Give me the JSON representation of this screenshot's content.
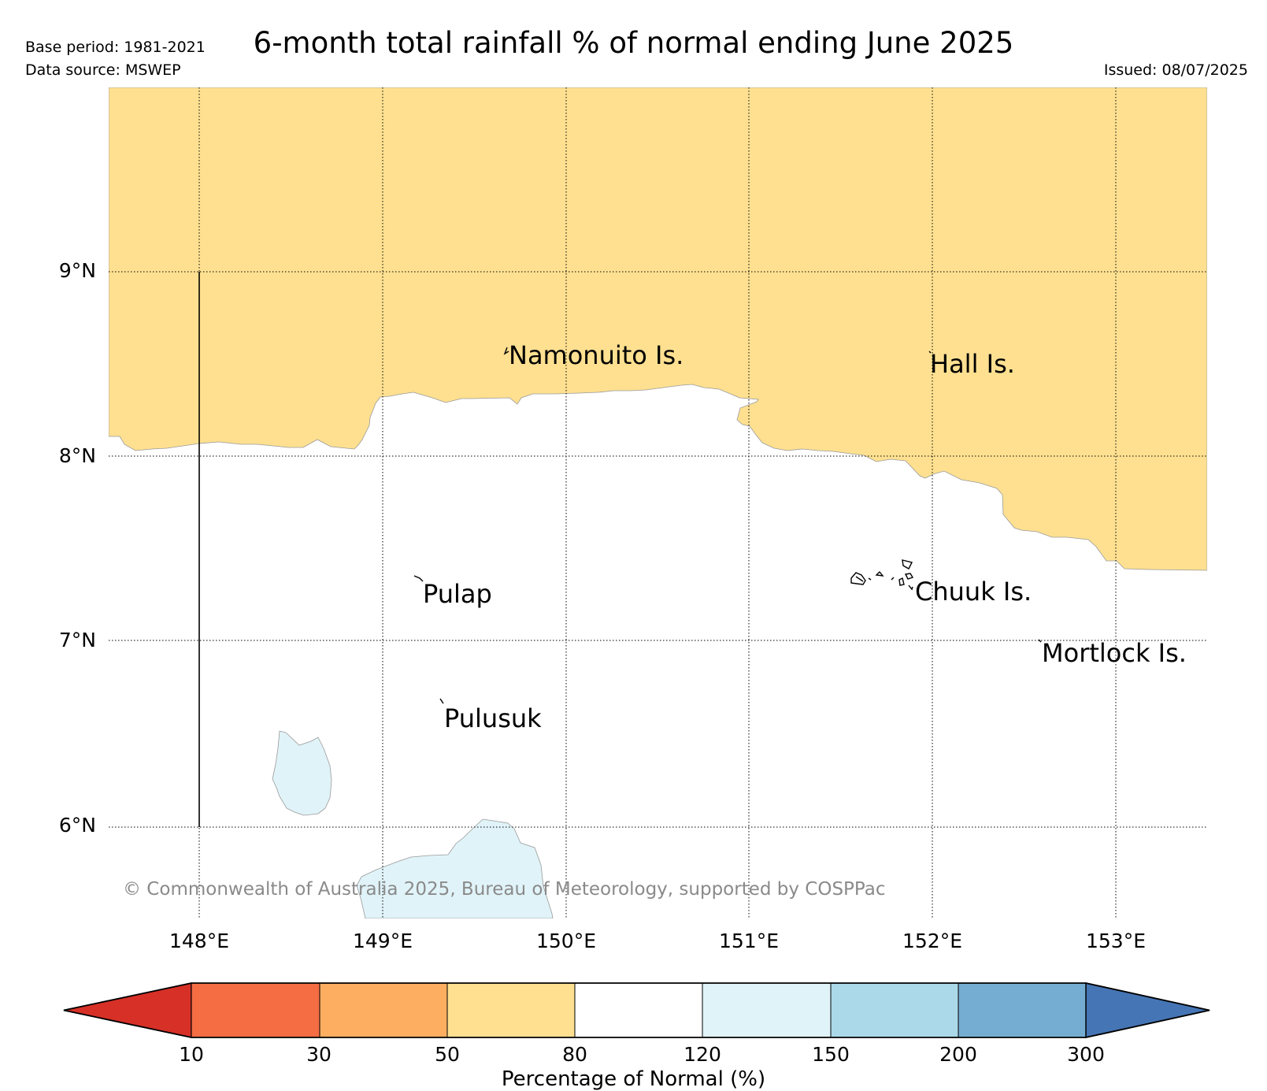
{
  "header": {
    "title": "6-month total rainfall % of normal ending June 2025",
    "base_period": "Base period: 1981-2021",
    "data_source": "Data source: MSWEP",
    "issued": "Issued: 08/07/2025"
  },
  "axes": {
    "lat_labels": [
      "9°N",
      "8°N",
      "7°N",
      "6°N"
    ],
    "lon_labels": [
      "148°E",
      "149°E",
      "150°E",
      "151°E",
      "152°E",
      "153°E"
    ]
  },
  "places": {
    "namonuito": "Namonuito Is.",
    "hall": "Hall Is.",
    "pulap": "Pulap",
    "chuuk": "Chuuk Is.",
    "mortlock": "Mortlock Is.",
    "pulusuk": "Pulusuk"
  },
  "copyright": "© Commonwealth of Australia 2025, Bureau of Meteorology, supported by COSPPac",
  "colorbar": {
    "ticks": [
      "10",
      "30",
      "50",
      "80",
      "120",
      "150",
      "200",
      "300"
    ],
    "label": "Percentage of Normal (%)",
    "colors": {
      "lt10": "#d73027",
      "c10_30": "#f46d43",
      "c30_50": "#fdae61",
      "c50_80": "#fee090",
      "c80_120": "#ffffff",
      "c120_150": "#e0f3f8",
      "c150_200": "#abd9e9",
      "c200_300": "#74add1",
      "gt300": "#4575b4"
    }
  },
  "map_colors": {
    "dry_fill": "#fee090",
    "wet_fill": "#e0f3f8",
    "grid": "#000000"
  }
}
